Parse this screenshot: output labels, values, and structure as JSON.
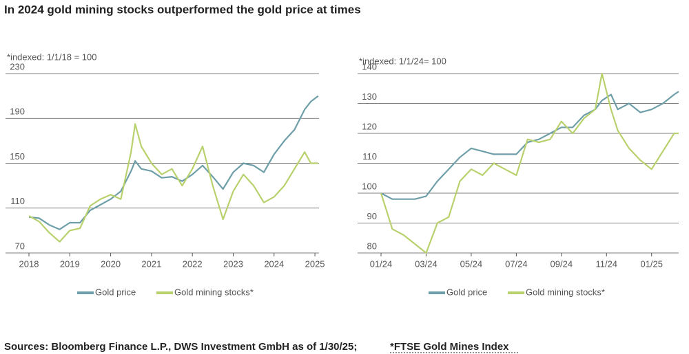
{
  "title": "In 2024 gold mining stocks outperformed the gold price at times",
  "source": "Sources: Bloomberg Finance L.P., DWS Investment GmbH as of 1/30/25;",
  "source_note": "*FTSE Gold Mines Index",
  "chart_data": [
    {
      "type": "line",
      "note": "*indexed: 1/1/18 = 100",
      "x": [
        2018.0,
        2018.25,
        2018.5,
        2018.75,
        2019.0,
        2019.25,
        2019.5,
        2019.75,
        2020.0,
        2020.25,
        2020.5,
        2020.6,
        2020.75,
        2021.0,
        2021.25,
        2021.5,
        2021.75,
        2022.0,
        2022.25,
        2022.5,
        2022.75,
        2023.0,
        2023.25,
        2023.5,
        2023.75,
        2024.0,
        2024.25,
        2024.5,
        2024.75,
        2024.9,
        2025.08
      ],
      "series": [
        {
          "name": "Gold price",
          "color": "#6e9fa8",
          "values": [
            102,
            101,
            95,
            91,
            97,
            97,
            108,
            113,
            118,
            125,
            143,
            152,
            145,
            143,
            137,
            138,
            134,
            140,
            148,
            138,
            127,
            142,
            150,
            148,
            142,
            158,
            170,
            180,
            198,
            205,
            210
          ]
        },
        {
          "name": "Gold mining stocks*",
          "color": "#b8d16d",
          "values": [
            103,
            98,
            88,
            80,
            90,
            92,
            112,
            118,
            122,
            118,
            160,
            185,
            165,
            150,
            140,
            145,
            130,
            145,
            165,
            130,
            100,
            125,
            140,
            130,
            115,
            120,
            130,
            145,
            160,
            150,
            150
          ]
        }
      ],
      "xlim": [
        2018,
        2025.1
      ],
      "xticks": [
        2018,
        2019,
        2020,
        2021,
        2022,
        2023,
        2024,
        2025
      ],
      "ylim": [
        70,
        230
      ],
      "yticks": [
        70,
        110,
        150,
        190,
        230
      ],
      "grid": true
    },
    {
      "type": "line",
      "note": "*indexed: 1/1/24= 100",
      "x": [
        0,
        0.5,
        1,
        1.5,
        2,
        2.5,
        3,
        3.5,
        4,
        4.5,
        5,
        5.5,
        6,
        6.5,
        7,
        7.5,
        8,
        8.5,
        9,
        9.5,
        9.8,
        10.2,
        10.5,
        11,
        11.5,
        12,
        12.5,
        13,
        13.2
      ],
      "series": [
        {
          "name": "Gold price",
          "color": "#6e9fa8",
          "values": [
            100,
            98,
            98,
            98,
            99,
            104,
            108,
            112,
            115,
            114,
            113,
            113,
            113,
            117,
            118,
            120,
            122,
            122,
            126,
            128,
            131,
            133,
            128,
            130,
            127,
            128,
            130,
            133,
            134
          ]
        },
        {
          "name": "Gold mining stocks*",
          "color": "#b8d16d",
          "values": [
            100,
            88,
            86,
            83,
            80,
            90,
            92,
            104,
            108,
            106,
            110,
            108,
            106,
            118,
            117,
            118,
            124,
            120,
            125,
            128,
            140,
            128,
            121,
            115,
            111,
            108,
            114,
            120,
            120
          ]
        }
      ],
      "xlim": [
        0,
        13.2
      ],
      "xticks": [
        {
          "value": 0,
          "label": "01/24"
        },
        {
          "value": 2,
          "label": "03/24"
        },
        {
          "value": 4,
          "label": "05/24"
        },
        {
          "value": 6,
          "label": "07/24"
        },
        {
          "value": 8,
          "label": "09/24"
        },
        {
          "value": 10,
          "label": "11/24"
        },
        {
          "value": 12,
          "label": "01/25"
        }
      ],
      "ylim": [
        80,
        140
      ],
      "yticks": [
        80,
        90,
        100,
        110,
        120,
        130,
        140
      ],
      "grid": true
    }
  ]
}
